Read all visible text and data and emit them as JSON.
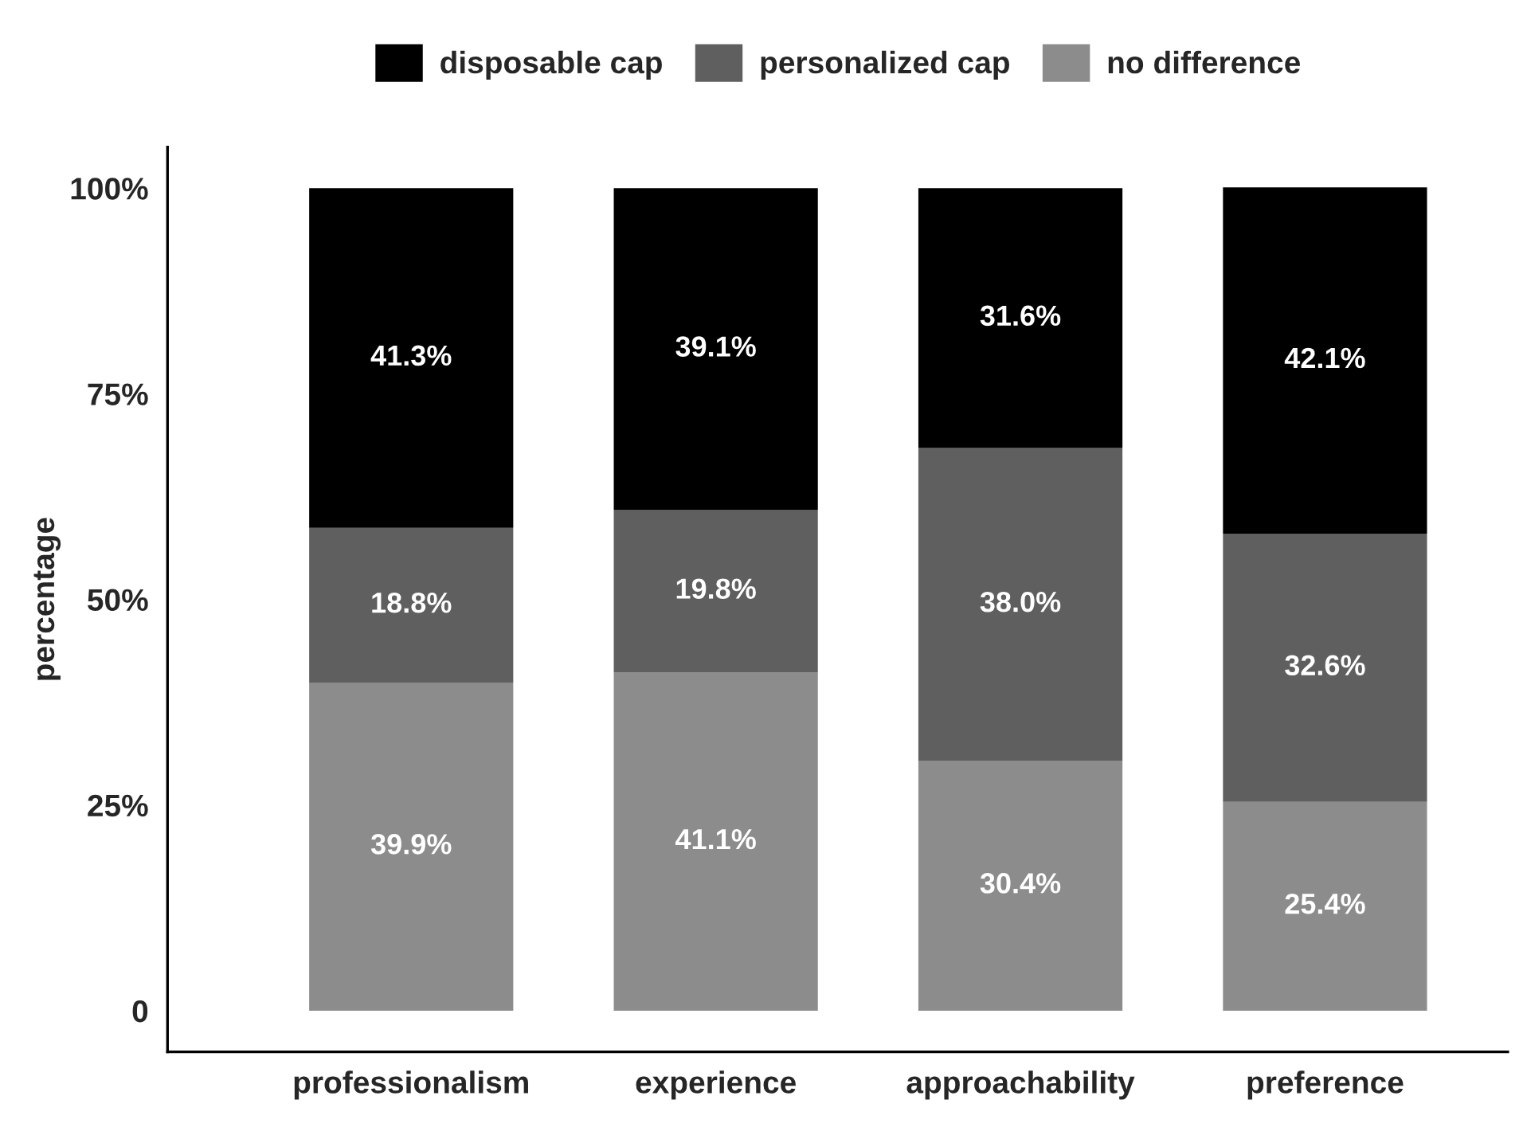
{
  "chart_data": {
    "type": "bar",
    "stacked": true,
    "ylabel": "percentage",
    "categories": [
      "professionalism",
      "experience",
      "approachability",
      "preference"
    ],
    "series": [
      {
        "name": "no difference",
        "color": "#8c8c8c",
        "values": [
          39.9,
          41.1,
          30.4,
          25.4
        ],
        "value_labels": [
          "39.9%",
          "41.1%",
          "30.4%",
          "25.4%"
        ]
      },
      {
        "name": "personalized cap",
        "color": "#5f5f5f",
        "values": [
          18.8,
          19.8,
          38.0,
          32.6
        ],
        "value_labels": [
          "18.8%",
          "19.8%",
          "38.0%",
          "32.6%"
        ]
      },
      {
        "name": "disposable cap",
        "color": "#000000",
        "values": [
          41.3,
          39.1,
          31.6,
          42.1
        ],
        "value_labels": [
          "41.3%",
          "39.1%",
          "31.6%",
          "42.1%"
        ]
      }
    ],
    "ylim": [
      -5,
      105
    ],
    "yticks": [
      0,
      {
        "value": 25,
        "label": "25%"
      },
      {
        "value": 50,
        "label": "50%"
      },
      {
        "value": 75,
        "label": "75%"
      },
      {
        "value": 100,
        "label": "100%"
      }
    ],
    "grid": false,
    "legend": "top"
  }
}
